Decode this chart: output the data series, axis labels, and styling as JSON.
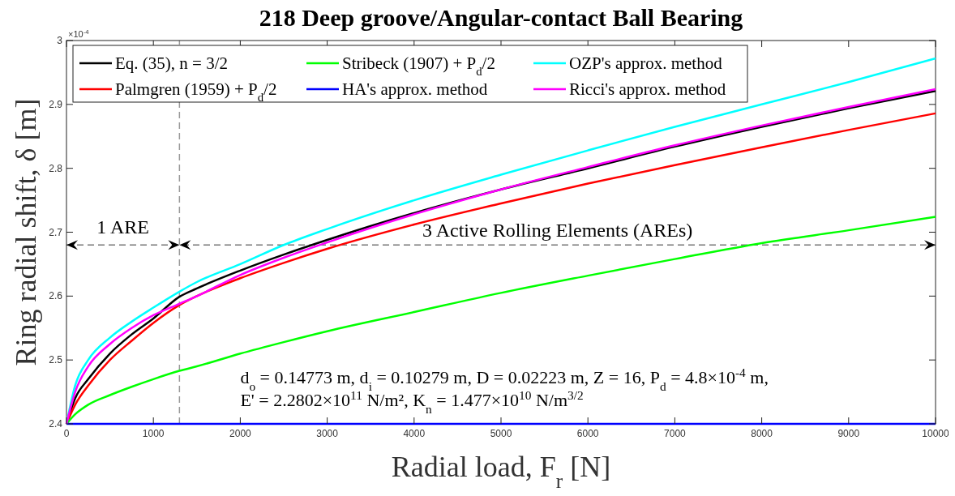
{
  "chart_data": {
    "type": "line",
    "title": "218 Deep groove/Angular-contact Ball Bearing",
    "xlabel": "Radial load, F$_{r}$  [N]",
    "ylabel": "Ring radial shift, δ [m]",
    "x": [
      0,
      100,
      250,
      500,
      750,
      1000,
      1300,
      1500,
      2000,
      2500,
      3000,
      4000,
      5000,
      6000,
      7000,
      8000,
      9000,
      10000
    ],
    "series": [
      {
        "name": "Eq. (35), n = 3/2",
        "color": "#000000",
        "values": [
          2.4,
          2.44,
          2.47,
          2.51,
          2.54,
          2.565,
          2.599,
          2.612,
          2.64,
          2.665,
          2.688,
          2.73,
          2.767,
          2.8,
          2.834,
          2.865,
          2.894,
          2.921
        ]
      },
      {
        "name": "Palmgren (1959) + P$_{d}$/2",
        "color": "#ff0000",
        "values": [
          2.4,
          2.43,
          2.46,
          2.5,
          2.53,
          2.558,
          2.586,
          2.6,
          2.628,
          2.652,
          2.674,
          2.712,
          2.745,
          2.776,
          2.805,
          2.833,
          2.86,
          2.886
        ]
      },
      {
        "name": "Stribeck (1907) + P$_{d}$/2",
        "color": "#00ff00",
        "values": [
          2.4,
          2.415,
          2.43,
          2.445,
          2.458,
          2.47,
          2.483,
          2.49,
          2.51,
          2.528,
          2.545,
          2.575,
          2.605,
          2.632,
          2.658,
          2.683,
          2.703,
          2.724
        ]
      },
      {
        "name": "HA's approx. method",
        "color": "#0000ff",
        "values": [
          2.4,
          2.4,
          2.4,
          2.4,
          2.4,
          2.4,
          2.4,
          2.4,
          2.4,
          2.4,
          2.4,
          2.4,
          2.4,
          2.4,
          2.4,
          2.4,
          2.4,
          2.4
        ]
      },
      {
        "name": "OZP's approx. method",
        "color": "#00ffff",
        "values": [
          2.4,
          2.46,
          2.5,
          2.535,
          2.56,
          2.582,
          2.607,
          2.622,
          2.65,
          2.68,
          2.705,
          2.75,
          2.79,
          2.828,
          2.865,
          2.9,
          2.935,
          2.972
        ]
      },
      {
        "name": "Ricci's approx. method",
        "color": "#ff00ff",
        "values": [
          2.4,
          2.45,
          2.49,
          2.525,
          2.55,
          2.57,
          2.588,
          2.6,
          2.633,
          2.66,
          2.684,
          2.728,
          2.767,
          2.802,
          2.836,
          2.867,
          2.896,
          2.924
        ]
      }
    ],
    "xlim": [
      0,
      10000
    ],
    "xticks": [
      0,
      1000,
      2000,
      3000,
      4000,
      5000,
      6000,
      7000,
      8000,
      9000,
      10000
    ],
    "ylim": [
      2.4,
      3.0
    ],
    "yticks": [
      2.4,
      2.5,
      2.6,
      2.7,
      2.8,
      2.9,
      3
    ],
    "ref_lines": [
      {
        "axis": "x",
        "value": 1300,
        "color": "#999999",
        "line_style": "dashed"
      },
      {
        "axis": "y",
        "value": 2.68,
        "color": "#777777",
        "line_style": "dashed"
      }
    ],
    "annotations": [
      "×10$^{-4}$",
      "1 ARE",
      "3 Active Rolling Elements (AREs)",
      "d$_{o}$ = 0.14773 m, d$_{i}$ = 0.10279 m, D = 0.02223 m, Z = 16, P$_{d}$ = 4.8×10$^{-4}$ m,",
      "E' = 2.2802×10$^{11}$ N/m², K$_{n}$ = 1.477×10$^{10}$ N/m$^{3/2}$"
    ],
    "legend": "top left",
    "grid": false,
    "line_style": "solid",
    "marker": "none"
  }
}
